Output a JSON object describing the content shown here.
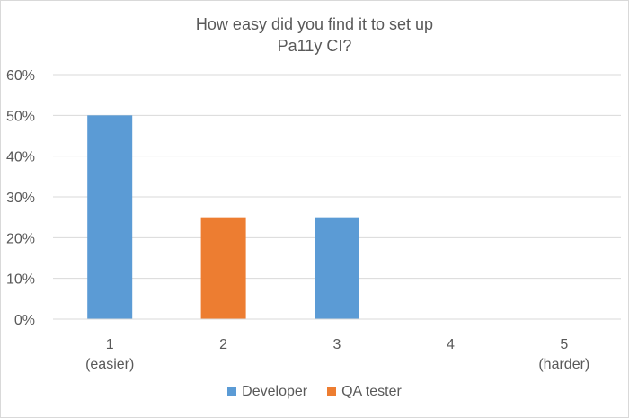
{
  "chart_data": {
    "type": "bar",
    "title_lines": [
      "How easy did you find it to set up",
      "Pa11y CI?"
    ],
    "categories": [
      "1",
      "2",
      "3",
      "4",
      "5"
    ],
    "category_sublabels": [
      "(easier)",
      "",
      "",
      "",
      "(harder)"
    ],
    "series": [
      {
        "name": "Developer",
        "color": "#5b9bd5",
        "values": [
          50,
          0,
          25,
          0,
          0
        ]
      },
      {
        "name": "QA tester",
        "color": "#ed7d31",
        "values": [
          0,
          25,
          0,
          0,
          0
        ]
      }
    ],
    "ylim": [
      0,
      60
    ],
    "y_ticks": [
      "0%",
      "10%",
      "20%",
      "30%",
      "40%",
      "50%",
      "60%"
    ],
    "grid": true,
    "legend_position": "bottom"
  }
}
